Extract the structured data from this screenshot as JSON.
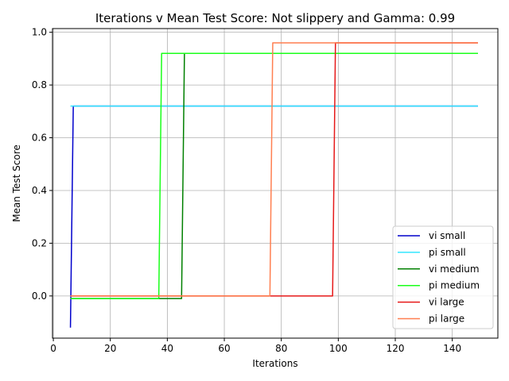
{
  "chart_data": {
    "type": "line",
    "title": "Iterations v Mean Test Score: Not slippery and Gamma: 0.99",
    "xlabel": "Iterations",
    "ylabel": "Mean Test Score",
    "xlim": [
      -0.3,
      156
    ],
    "ylim": [
      -0.16,
      1.014
    ],
    "xticks": [
      0,
      20,
      40,
      60,
      80,
      100,
      120,
      140
    ],
    "yticks": [
      0.0,
      0.2,
      0.4,
      0.6,
      0.8,
      1.0
    ],
    "xtick_labels": [
      "0",
      "20",
      "40",
      "60",
      "80",
      "100",
      "120",
      "140"
    ],
    "ytick_labels": [
      "0.0",
      "0.2",
      "0.4",
      "0.6",
      "0.8",
      "1.0"
    ],
    "grid": true,
    "legend_position": "lower-right",
    "series": [
      {
        "name": "vi small",
        "color": "#0000cc",
        "x": [
          6,
          7,
          8,
          149
        ],
        "y": [
          -0.12,
          0.72,
          0.72,
          0.72
        ]
      },
      {
        "name": "pi small",
        "color": "#33e6ff",
        "x": [
          6,
          149
        ],
        "y": [
          0.72,
          0.72
        ]
      },
      {
        "name": "vi medium",
        "color": "#008000",
        "x": [
          6,
          45,
          46,
          47,
          149
        ],
        "y": [
          -0.01,
          -0.01,
          0.92,
          0.92,
          0.92
        ]
      },
      {
        "name": "pi medium",
        "color": "#19ff19",
        "x": [
          6,
          37,
          38,
          149
        ],
        "y": [
          -0.01,
          -0.01,
          0.92,
          0.92
        ]
      },
      {
        "name": "vi large",
        "color": "#e61919",
        "x": [
          6,
          98,
          99,
          149
        ],
        "y": [
          0.0,
          0.0,
          0.96,
          0.96
        ]
      },
      {
        "name": "pi large",
        "color": "#ff7f50",
        "x": [
          6,
          76,
          77,
          149
        ],
        "y": [
          0.0,
          0.0,
          0.96,
          0.96
        ]
      }
    ]
  }
}
